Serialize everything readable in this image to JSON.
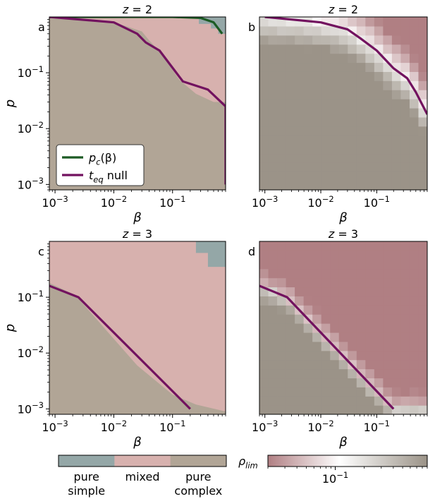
{
  "colors": {
    "pure_simple": "#94a7a7",
    "mixed": "#d7b1ae",
    "pure_complex": "#b1a596",
    "pc_line": "#1c5b24",
    "teq_line": "#72125f",
    "rho_low": "#b07f83",
    "rho_mid": "#ffffff",
    "rho_high": "#9b9388"
  },
  "chart_data": [
    {
      "panel": "a",
      "title": "z = 2",
      "type": "heatmap",
      "xlabel": "β",
      "ylabel": "p",
      "xscale": "log",
      "yscale": "log",
      "xlim": [
        0.0008,
        0.8
      ],
      "ylim": [
        0.0008,
        1.0
      ],
      "xticks": [
        "10^-3",
        "10^-2",
        "10^-1"
      ],
      "yticks": [
        "10^-3",
        "10^-2",
        "10^-1"
      ],
      "fill": "category",
      "boundary_mixed": [
        [
          0.0008,
          1.0
        ],
        [
          0.0095,
          0.82
        ],
        [
          0.03,
          0.55
        ],
        [
          0.04,
          0.38
        ],
        [
          0.065,
          0.22
        ],
        [
          0.13,
          0.075
        ],
        [
          0.25,
          0.042
        ],
        [
          0.5,
          0.03
        ],
        [
          0.8,
          0.03
        ]
      ],
      "boundary_simple": [
        [
          0.28,
          1.0
        ],
        [
          0.28,
          0.75
        ],
        [
          0.45,
          0.75
        ],
        [
          0.45,
          0.62
        ],
        [
          0.6,
          0.62
        ],
        [
          0.6,
          0.5
        ],
        [
          0.8,
          0.5
        ]
      ],
      "series": [
        {
          "name": "p_c(β)",
          "x": [
            0.0008,
            0.01,
            0.1,
            0.3,
            0.5,
            0.7
          ],
          "y": [
            1.0,
            1.0,
            1.0,
            0.96,
            0.8,
            0.5
          ]
        },
        {
          "name": "t_eq null",
          "x": [
            0.0008,
            0.01,
            0.025,
            0.035,
            0.06,
            0.15,
            0.4,
            0.8,
            0.8
          ],
          "y": [
            1.0,
            0.8,
            0.5,
            0.35,
            0.25,
            0.07,
            0.05,
            0.025,
            0.001
          ]
        }
      ],
      "legend": {
        "location": "lower-left",
        "entries": [
          "p_c(β)",
          "t_eq null"
        ]
      }
    },
    {
      "panel": "b",
      "title": "z = 2",
      "type": "heatmap",
      "xlabel": "β",
      "xscale": "log",
      "yscale": "log",
      "xlim": [
        0.0008,
        0.8
      ],
      "ylim": [
        0.0008,
        1.0
      ],
      "xticks": [
        "10^-3",
        "10^-2",
        "10^-1"
      ],
      "fill": "rho_lim",
      "series": [
        {
          "name": "t_eq null",
          "x": [
            0.001,
            0.01,
            0.03,
            0.05,
            0.1,
            0.2,
            0.35,
            0.5,
            0.8
          ],
          "y": [
            1.0,
            0.8,
            0.6,
            0.42,
            0.25,
            0.12,
            0.08,
            0.045,
            0.018
          ]
        }
      ]
    },
    {
      "panel": "c",
      "title": "z = 3",
      "type": "heatmap",
      "xlabel": "β",
      "ylabel": "p",
      "xscale": "log",
      "yscale": "log",
      "xlim": [
        0.0008,
        0.8
      ],
      "ylim": [
        0.0008,
        1.0
      ],
      "xticks": [
        "10^-3",
        "10^-2",
        "10^-1"
      ],
      "yticks": [
        "10^-3",
        "10^-2",
        "10^-1"
      ],
      "fill": "category",
      "boundary_mixed": [
        [
          0.0008,
          0.18
        ],
        [
          0.0022,
          0.11
        ],
        [
          0.025,
          0.006
        ],
        [
          0.1,
          0.0018
        ],
        [
          0.25,
          0.0012
        ],
        [
          0.8,
          0.0009
        ]
      ],
      "boundary_simple": [
        [
          0.25,
          1.0
        ],
        [
          0.25,
          0.62
        ],
        [
          0.4,
          0.62
        ],
        [
          0.4,
          0.35
        ],
        [
          0.8,
          0.35
        ]
      ],
      "series": [
        {
          "name": "t_eq null",
          "x": [
            0.0008,
            0.0025,
            0.2
          ],
          "y": [
            0.16,
            0.1,
            0.001
          ]
        }
      ]
    },
    {
      "panel": "d",
      "title": "z = 3",
      "type": "heatmap",
      "xlabel": "β",
      "xscale": "log",
      "yscale": "log",
      "xlim": [
        0.0008,
        0.8
      ],
      "ylim": [
        0.0008,
        1.0
      ],
      "xticks": [
        "10^-3",
        "10^-2",
        "10^-1"
      ],
      "fill": "rho_lim",
      "series": [
        {
          "name": "t_eq null",
          "x": [
            0.0008,
            0.0025,
            0.2
          ],
          "y": [
            0.16,
            0.1,
            0.001
          ]
        }
      ]
    }
  ],
  "legend_categories": {
    "labels": [
      "pure\nsimple",
      "mixed",
      "pure\ncomplex"
    ]
  },
  "colorbar": {
    "label": "ρ_lim",
    "tick_label": "10^-1",
    "tick_value": 0.1,
    "range": [
      0.02,
      0.9
    ]
  }
}
